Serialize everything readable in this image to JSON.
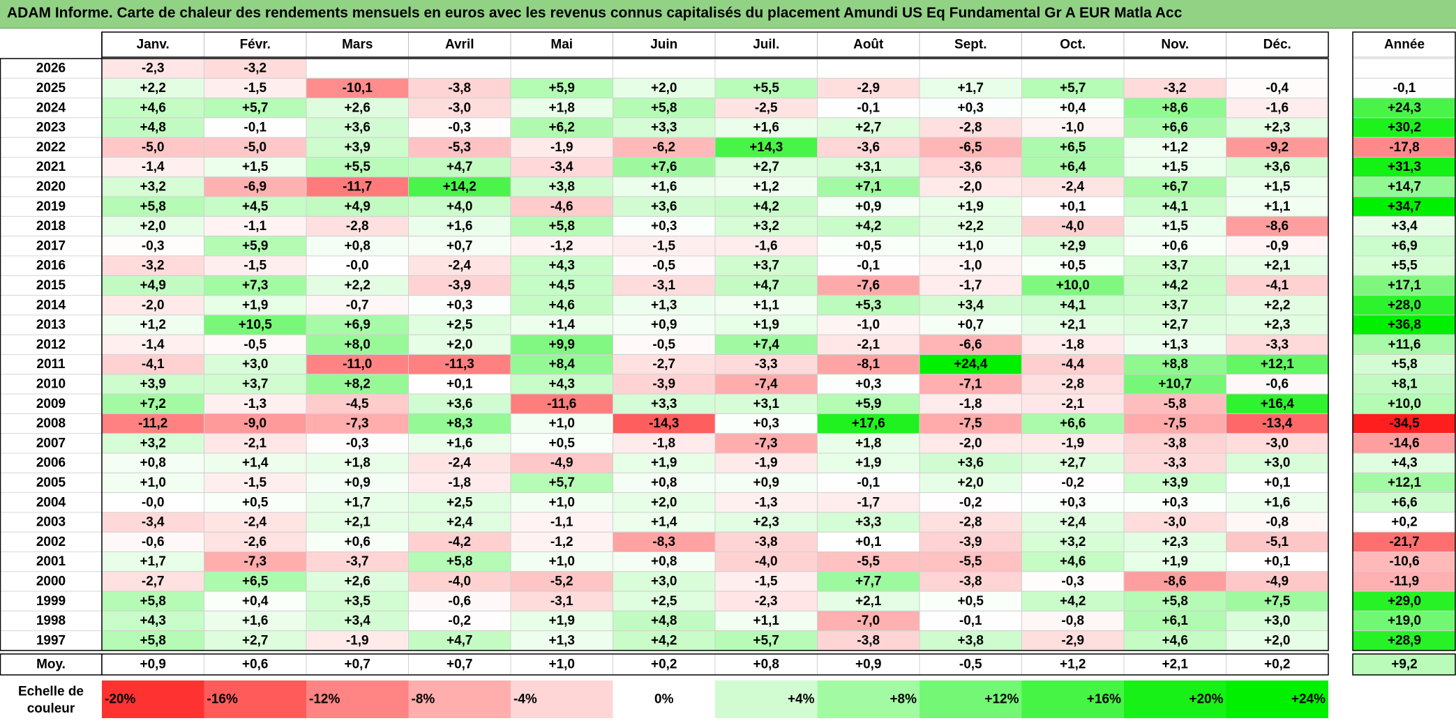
{
  "title": "ADAM Informe. Carte de chaleur des rendements mensuels en euros avec les revenus connus capitalisés du placement Amundi US Eq Fundamental Gr A EUR Matla Acc",
  "chart_data": {
    "type": "heatmap",
    "months": [
      "Janv.",
      "Févr.",
      "Mars",
      "Avril",
      "Mai",
      "Juin",
      "Juil.",
      "Août",
      "Sept.",
      "Oct.",
      "Nov.",
      "Déc."
    ],
    "year_header": "Année",
    "rows": [
      {
        "year": "2026",
        "months": [
          "-2,3",
          "-3,2",
          "",
          "",
          "",
          "",
          "",
          "",
          "",
          "",
          "",
          ""
        ],
        "annual": ""
      },
      {
        "year": "2025",
        "months": [
          "+2,2",
          "-1,5",
          "-10,1",
          "-3,8",
          "+5,9",
          "+2,0",
          "+5,5",
          "-2,9",
          "+1,7",
          "+5,7",
          "-3,2",
          "-0,4"
        ],
        "annual": "-0,1"
      },
      {
        "year": "2024",
        "months": [
          "+4,6",
          "+5,7",
          "+2,6",
          "-3,0",
          "+1,8",
          "+5,8",
          "-2,5",
          "-0,1",
          "+0,3",
          "+0,4",
          "+8,6",
          "-1,6"
        ],
        "annual": "+24,3"
      },
      {
        "year": "2023",
        "months": [
          "+4,8",
          "-0,1",
          "+3,6",
          "-0,3",
          "+6,2",
          "+3,3",
          "+1,6",
          "+2,7",
          "-2,8",
          "-1,0",
          "+6,6",
          "+2,3"
        ],
        "annual": "+30,2"
      },
      {
        "year": "2022",
        "months": [
          "-5,0",
          "-5,0",
          "+3,9",
          "-5,3",
          "-1,9",
          "-6,2",
          "+14,3",
          "-3,6",
          "-6,5",
          "+6,5",
          "+1,2",
          "-9,2"
        ],
        "annual": "-17,8"
      },
      {
        "year": "2021",
        "months": [
          "-1,4",
          "+1,5",
          "+5,5",
          "+4,7",
          "-3,4",
          "+7,6",
          "+2,7",
          "+3,1",
          "-3,6",
          "+6,4",
          "+1,5",
          "+3,6"
        ],
        "annual": "+31,3"
      },
      {
        "year": "2020",
        "months": [
          "+3,2",
          "-6,9",
          "-11,7",
          "+14,2",
          "+3,8",
          "+1,6",
          "+1,2",
          "+7,1",
          "-2,0",
          "-2,4",
          "+6,7",
          "+1,5"
        ],
        "annual": "+14,7"
      },
      {
        "year": "2019",
        "months": [
          "+5,8",
          "+4,5",
          "+4,9",
          "+4,0",
          "-4,6",
          "+3,6",
          "+4,2",
          "+0,9",
          "+1,9",
          "+0,1",
          "+4,1",
          "+1,1"
        ],
        "annual": "+34,7"
      },
      {
        "year": "2018",
        "months": [
          "+2,0",
          "-1,1",
          "-2,8",
          "+1,6",
          "+5,8",
          "+0,3",
          "+3,2",
          "+4,2",
          "+2,2",
          "-4,0",
          "+1,5",
          "-8,6"
        ],
        "annual": "+3,4"
      },
      {
        "year": "2017",
        "months": [
          "-0,3",
          "+5,9",
          "+0,8",
          "+0,7",
          "-1,2",
          "-1,5",
          "-1,6",
          "+0,5",
          "+1,0",
          "+2,9",
          "+0,6",
          "-0,9"
        ],
        "annual": "+6,9"
      },
      {
        "year": "2016",
        "months": [
          "-3,2",
          "-1,5",
          "-0,0",
          "-2,4",
          "+4,3",
          "-0,5",
          "+3,7",
          "-0,1",
          "-1,0",
          "+0,5",
          "+3,7",
          "+2,1"
        ],
        "annual": "+5,5"
      },
      {
        "year": "2015",
        "months": [
          "+4,9",
          "+7,3",
          "+2,2",
          "-3,9",
          "+4,5",
          "-3,1",
          "+4,7",
          "-7,6",
          "-1,7",
          "+10,0",
          "+4,2",
          "-4,1"
        ],
        "annual": "+17,1"
      },
      {
        "year": "2014",
        "months": [
          "-2,0",
          "+1,9",
          "-0,7",
          "+0,3",
          "+4,6",
          "+1,3",
          "+1,1",
          "+5,3",
          "+3,4",
          "+4,1",
          "+3,7",
          "+2,2"
        ],
        "annual": "+28,0"
      },
      {
        "year": "2013",
        "months": [
          "+1,2",
          "+10,5",
          "+6,9",
          "+2,5",
          "+1,4",
          "+0,9",
          "+1,9",
          "-1,0",
          "+0,7",
          "+2,1",
          "+2,7",
          "+2,3"
        ],
        "annual": "+36,8"
      },
      {
        "year": "2012",
        "months": [
          "-1,4",
          "-0,5",
          "+8,0",
          "+2,0",
          "+9,9",
          "-0,5",
          "+7,4",
          "-2,1",
          "-6,6",
          "-1,8",
          "+1,3",
          "-3,3"
        ],
        "annual": "+11,6"
      },
      {
        "year": "2011",
        "months": [
          "-4,1",
          "+3,0",
          "-11,0",
          "-11,3",
          "+8,4",
          "-2,7",
          "-3,3",
          "-8,1",
          "+24,4",
          "-4,4",
          "+8,8",
          "+12,1"
        ],
        "annual": "+5,8"
      },
      {
        "year": "2010",
        "months": [
          "+3,9",
          "+3,7",
          "+8,2",
          "+0,1",
          "+4,3",
          "-3,9",
          "-7,4",
          "+0,3",
          "-7,1",
          "-2,8",
          "+10,7",
          "-0,6"
        ],
        "annual": "+8,1"
      },
      {
        "year": "2009",
        "months": [
          "+7,2",
          "-1,3",
          "-4,5",
          "+3,6",
          "-11,6",
          "+3,3",
          "+3,1",
          "+5,9",
          "-1,8",
          "-2,1",
          "-5,8",
          "+16,4"
        ],
        "annual": "+10,0"
      },
      {
        "year": "2008",
        "months": [
          "-11,2",
          "-9,0",
          "-7,3",
          "+8,3",
          "+1,0",
          "-14,3",
          "+0,3",
          "+17,6",
          "-7,5",
          "+6,6",
          "-7,5",
          "-13,4"
        ],
        "annual": "-34,5"
      },
      {
        "year": "2007",
        "months": [
          "+3,2",
          "-2,1",
          "-0,3",
          "+1,6",
          "+0,5",
          "-1,8",
          "-7,3",
          "+1,8",
          "-2,0",
          "-1,9",
          "-3,8",
          "-3,0"
        ],
        "annual": "-14,6"
      },
      {
        "year": "2006",
        "months": [
          "+0,8",
          "+1,4",
          "+1,8",
          "-2,4",
          "-4,9",
          "+1,9",
          "-1,9",
          "+1,9",
          "+3,6",
          "+2,7",
          "-3,3",
          "+3,0"
        ],
        "annual": "+4,3"
      },
      {
        "year": "2005",
        "months": [
          "+1,0",
          "-1,5",
          "+0,9",
          "-1,8",
          "+5,7",
          "+0,8",
          "+0,9",
          "-0,1",
          "+2,0",
          "-0,2",
          "+3,9",
          "+0,1"
        ],
        "annual": "+12,1"
      },
      {
        "year": "2004",
        "months": [
          "-0,0",
          "+0,5",
          "+1,7",
          "+2,5",
          "+1,0",
          "+2,0",
          "-1,3",
          "-1,7",
          "-0,2",
          "+0,3",
          "+0,3",
          "+1,6"
        ],
        "annual": "+6,6"
      },
      {
        "year": "2003",
        "months": [
          "-3,4",
          "-2,4",
          "+2,1",
          "+2,4",
          "-1,1",
          "+1,4",
          "+2,3",
          "+3,3",
          "-2,8",
          "+2,4",
          "-3,0",
          "-0,8"
        ],
        "annual": "+0,2"
      },
      {
        "year": "2002",
        "months": [
          "-0,6",
          "-2,6",
          "+0,6",
          "-4,2",
          "-1,2",
          "-8,3",
          "-3,8",
          "+0,1",
          "-3,9",
          "+3,2",
          "+2,3",
          "-5,1"
        ],
        "annual": "-21,7"
      },
      {
        "year": "2001",
        "months": [
          "+1,7",
          "-7,3",
          "-3,7",
          "+5,8",
          "+1,0",
          "+0,8",
          "-4,0",
          "-5,5",
          "-5,5",
          "+4,6",
          "+1,9",
          "+0,1"
        ],
        "annual": "-10,6"
      },
      {
        "year": "2000",
        "months": [
          "-2,7",
          "+6,5",
          "+2,6",
          "-4,0",
          "-5,2",
          "+3,0",
          "-1,5",
          "+7,7",
          "-3,8",
          "-0,3",
          "-8,6",
          "-4,9"
        ],
        "annual": "-11,9"
      },
      {
        "year": "1999",
        "months": [
          "+5,8",
          "+0,4",
          "+3,5",
          "-0,6",
          "-3,1",
          "+2,5",
          "-2,3",
          "+2,1",
          "+0,5",
          "+4,2",
          "+5,8",
          "+7,5"
        ],
        "annual": "+29,0"
      },
      {
        "year": "1998",
        "months": [
          "+4,3",
          "+1,6",
          "+3,4",
          "-0,2",
          "+1,9",
          "+4,8",
          "+1,1",
          "-7,0",
          "-0,1",
          "-0,8",
          "+6,1",
          "+3,0"
        ],
        "annual": "+19,0"
      },
      {
        "year": "1997",
        "months": [
          "+5,8",
          "+2,7",
          "-1,9",
          "+4,7",
          "+1,3",
          "+4,2",
          "+5,7",
          "-3,8",
          "+3,8",
          "-2,9",
          "+4,6",
          "+2,0"
        ],
        "annual": "+28,9"
      }
    ],
    "average": {
      "label": "Moy.",
      "months": [
        "+0,9",
        "+0,6",
        "+0,7",
        "+0,7",
        "+1,0",
        "+0,2",
        "+0,8",
        "+0,9",
        "-0,5",
        "+1,2",
        "+2,1",
        "+0,2"
      ],
      "annual": "+9,2"
    },
    "scale": {
      "label_line1": "Echelle de",
      "label_line2": "couleur",
      "labels": [
        "-20%",
        "-16%",
        "-12%",
        "-8%",
        "-4%",
        "0%",
        "+4%",
        "+8%",
        "+12%",
        "+16%",
        "+20%",
        "+24%"
      ],
      "values": [
        -20,
        -16,
        -12,
        -8,
        -4,
        0,
        4,
        8,
        12,
        16,
        20,
        24
      ]
    },
    "colors": {
      "negative_max": "#ff1a1a",
      "positive_max": "#00f000",
      "neutral": "#ffffff",
      "title_background": "#92d285"
    }
  }
}
